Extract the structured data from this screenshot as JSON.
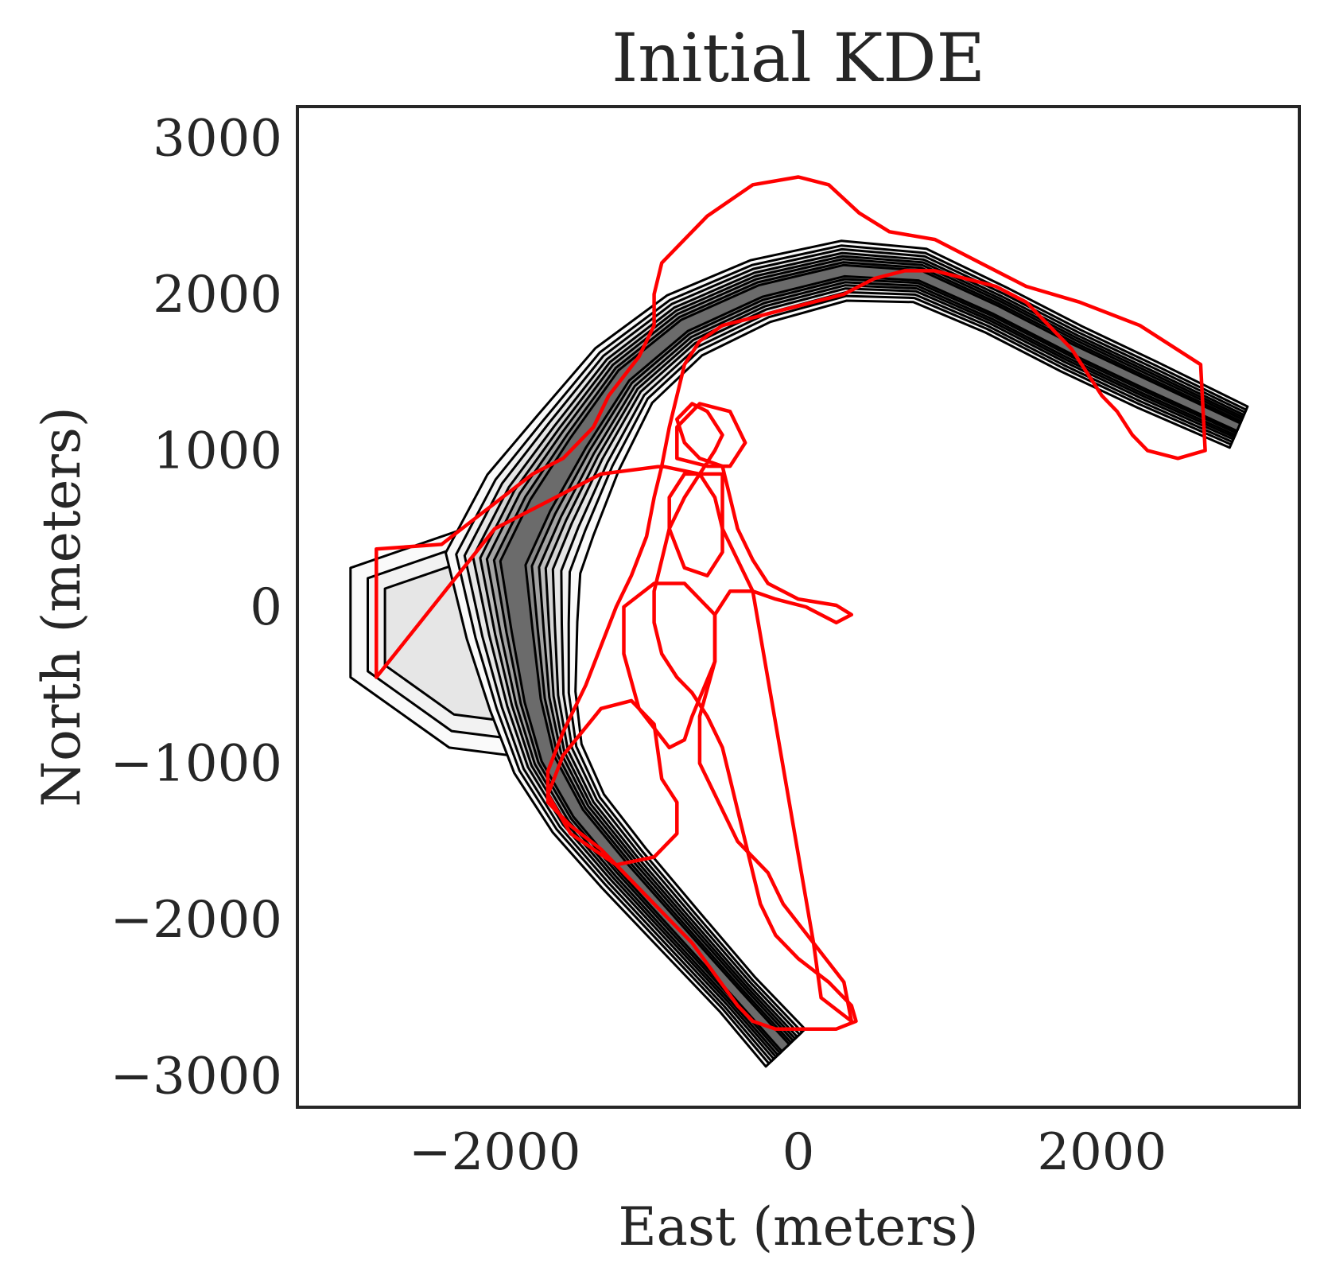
{
  "chart_data": {
    "type": "contour",
    "title": "Initial KDE",
    "xlabel": "East (meters)",
    "ylabel": "North (meters)",
    "xlim": [
      -3300,
      3300
    ],
    "ylim": [
      -3200,
      3200
    ],
    "xticks": [
      -2000,
      0,
      2000
    ],
    "xtick_labels": [
      "−2000",
      "0",
      "2000"
    ],
    "yticks": [
      -3000,
      -2000,
      -1000,
      0,
      1000,
      2000,
      3000
    ],
    "ytick_labels": [
      "−3000",
      "−2000",
      "−1000",
      "0",
      "1000",
      "2000",
      "3000"
    ],
    "grid": false,
    "legend": "none",
    "colors": {
      "kde_contours": "#000000",
      "boundary": "#ff0000",
      "frame": "#262626"
    },
    "kde_ridge": [
      [
        -85,
        -2820
      ],
      [
        -400,
        -2480
      ],
      [
        -800,
        -2050
      ],
      [
        -1150,
        -1670
      ],
      [
        -1450,
        -1320
      ],
      [
        -1650,
        -970
      ],
      [
        -1750,
        -600
      ],
      [
        -1820,
        -150
      ],
      [
        -1880,
        280
      ],
      [
        -1700,
        650
      ],
      [
        -1450,
        1050
      ],
      [
        -1150,
        1480
      ],
      [
        -750,
        1800
      ],
      [
        -250,
        2020
      ],
      [
        300,
        2150
      ],
      [
        800,
        2120
      ],
      [
        1300,
        1900
      ],
      [
        1800,
        1650
      ],
      [
        2300,
        1420
      ],
      [
        2900,
        1150
      ]
    ],
    "kde_ridge_halfwidth": [
      110,
      100,
      110,
      120,
      130,
      150,
      180,
      230,
      280,
      250,
      200,
      160,
      140,
      130,
      120,
      110,
      100,
      100,
      100,
      90
    ],
    "kde_fan": [
      [
        -2950,
        250
      ],
      [
        -2950,
        -450
      ],
      [
        -2300,
        -900
      ],
      [
        -1900,
        -950
      ],
      [
        -1650,
        -500
      ],
      [
        -1700,
        0
      ],
      [
        -1900,
        500
      ],
      [
        -2200,
        500
      ]
    ],
    "boundary_polygons": [
      [
        [
          -2780,
          370
        ],
        [
          -2350,
          400
        ],
        [
          -2150,
          550
        ],
        [
          -1950,
          700
        ],
        [
          -1750,
          850
        ],
        [
          -1550,
          950
        ],
        [
          -1350,
          1150
        ],
        [
          -1250,
          1350
        ],
        [
          -1050,
          1600
        ],
        [
          -950,
          1800
        ],
        [
          -950,
          2000
        ],
        [
          -900,
          2200
        ],
        [
          -750,
          2350
        ],
        [
          -600,
          2500
        ],
        [
          -300,
          2700
        ],
        [
          0,
          2750
        ],
        [
          200,
          2700
        ],
        [
          400,
          2520
        ],
        [
          600,
          2400
        ],
        [
          900,
          2350
        ],
        [
          1200,
          2200
        ],
        [
          1500,
          2050
        ],
        [
          1850,
          1950
        ],
        [
          2250,
          1800
        ],
        [
          2650,
          1550
        ],
        [
          2680,
          1000
        ],
        [
          2500,
          950
        ],
        [
          2300,
          1000
        ],
        [
          2200,
          1100
        ],
        [
          2100,
          1250
        ],
        [
          2000,
          1350
        ],
        [
          1900,
          1500
        ],
        [
          1800,
          1650
        ],
        [
          1650,
          1800
        ],
        [
          1500,
          1950
        ],
        [
          1300,
          2050
        ],
        [
          1100,
          2100
        ],
        [
          900,
          2150
        ],
        [
          700,
          2150
        ],
        [
          500,
          2100
        ],
        [
          300,
          2000
        ],
        [
          100,
          1950
        ],
        [
          -100,
          1900
        ],
        [
          -300,
          1850
        ],
        [
          -500,
          1800
        ],
        [
          -650,
          1700
        ],
        [
          -750,
          1550
        ],
        [
          -800,
          1350
        ],
        [
          -850,
          1150
        ],
        [
          -900,
          900
        ],
        [
          -950,
          700
        ],
        [
          -1000,
          450
        ],
        [
          -1100,
          200
        ],
        [
          -1200,
          0
        ],
        [
          -1300,
          -250
        ],
        [
          -1400,
          -500
        ],
        [
          -1550,
          -800
        ],
        [
          -1650,
          -1050
        ],
        [
          -1650,
          -1250
        ],
        [
          -1500,
          -1400
        ],
        [
          -1300,
          -1550
        ],
        [
          -1100,
          -1750
        ],
        [
          -900,
          -1950
        ],
        [
          -700,
          -2150
        ],
        [
          -550,
          -2350
        ],
        [
          -400,
          -2550
        ],
        [
          -300,
          -2650
        ],
        [
          -150,
          -2700
        ],
        [
          50,
          -2700
        ],
        [
          250,
          -2700
        ],
        [
          380,
          -2650
        ],
        [
          350,
          -2550
        ],
        [
          200,
          -2400
        ],
        [
          0,
          -2250
        ],
        [
          -150,
          -2100
        ],
        [
          -250,
          -1900
        ],
        [
          -300,
          -1700
        ],
        [
          -350,
          -1500
        ],
        [
          -400,
          -1300
        ],
        [
          -450,
          -1100
        ],
        [
          -500,
          -900
        ],
        [
          -600,
          -700
        ],
        [
          -700,
          -550
        ],
        [
          -800,
          -450
        ],
        [
          -900,
          -300
        ],
        [
          -950,
          -100
        ],
        [
          -950,
          100
        ],
        [
          -900,
          300
        ],
        [
          -850,
          500
        ],
        [
          -750,
          700
        ],
        [
          -650,
          850
        ],
        [
          -550,
          1000
        ],
        [
          -500,
          1100
        ],
        [
          -600,
          1250
        ],
        [
          -700,
          1300
        ],
        [
          -800,
          1200
        ],
        [
          -750,
          1050
        ],
        [
          -650,
          950
        ],
        [
          -500,
          900
        ],
        [
          -450,
          700
        ],
        [
          -400,
          500
        ],
        [
          -300,
          300
        ],
        [
          -200,
          150
        ],
        [
          0,
          50
        ],
        [
          250,
          10
        ],
        [
          350,
          -50
        ],
        [
          250,
          -100
        ],
        [
          50,
          0
        ],
        [
          -150,
          50
        ],
        [
          -300,
          100
        ],
        [
          -400,
          300
        ],
        [
          -500,
          500
        ],
        [
          -550,
          700
        ],
        [
          -650,
          850
        ],
        [
          -900,
          900
        ],
        [
          -1300,
          850
        ],
        [
          -2000,
          500
        ],
        [
          -2780,
          -450
        ]
      ],
      [
        [
          -350,
          1050
        ],
        [
          -450,
          1250
        ],
        [
          -650,
          1300
        ],
        [
          -800,
          1150
        ],
        [
          -800,
          950
        ],
        [
          -600,
          900
        ],
        [
          -450,
          900
        ]
      ],
      [
        [
          -500,
          850
        ],
        [
          -500,
          350
        ],
        [
          -600,
          200
        ],
        [
          -750,
          250
        ],
        [
          -850,
          500
        ],
        [
          -850,
          700
        ],
        [
          -750,
          850
        ]
      ],
      [
        [
          -700,
          -700
        ],
        [
          -550,
          -350
        ],
        [
          -550,
          -50
        ],
        [
          -750,
          150
        ],
        [
          -950,
          150
        ],
        [
          -1150,
          0
        ],
        [
          -1150,
          -300
        ],
        [
          -1050,
          -650
        ],
        [
          -850,
          -900
        ],
        [
          -750,
          -850
        ]
      ],
      [
        [
          -900,
          -1100
        ],
        [
          -950,
          -750
        ],
        [
          -1100,
          -600
        ],
        [
          -1300,
          -650
        ],
        [
          -1550,
          -950
        ],
        [
          -1650,
          -1200
        ],
        [
          -1500,
          -1450
        ],
        [
          -1200,
          -1650
        ],
        [
          -950,
          -1600
        ],
        [
          -800,
          -1450
        ],
        [
          -800,
          -1250
        ]
      ],
      [
        [
          -300,
          100
        ],
        [
          -450,
          100
        ],
        [
          -550,
          -50
        ],
        [
          -550,
          -350
        ],
        [
          -650,
          -700
        ],
        [
          -650,
          -1000
        ],
        [
          -550,
          -1200
        ],
        [
          -400,
          -1500
        ],
        [
          -200,
          -1700
        ],
        [
          -100,
          -1900
        ],
        [
          100,
          -2150
        ],
        [
          150,
          -2500
        ],
        [
          350,
          -2650
        ],
        [
          300,
          -2400
        ],
        [
          100,
          -2150
        ]
      ]
    ]
  }
}
